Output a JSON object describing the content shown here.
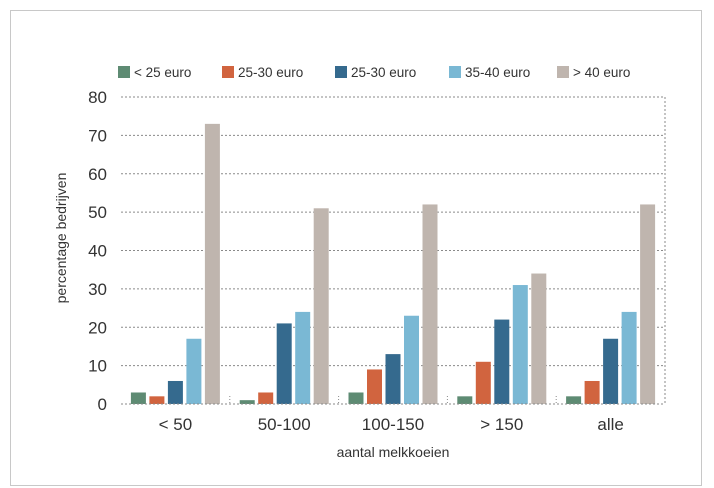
{
  "chart_data": {
    "type": "bar",
    "title": "",
    "xlabel": "aantal melkkoeien",
    "ylabel": "percentage bedrijven",
    "ylim": [
      0,
      80
    ],
    "yticks": [
      0,
      10,
      20,
      30,
      40,
      50,
      60,
      70,
      80
    ],
    "grid": true,
    "legend_position": "top",
    "categories": [
      "< 50",
      "50-100",
      "100-150",
      "> 150",
      "alle"
    ],
    "series": [
      {
        "name": "< 25 euro",
        "color": "#5e8b73",
        "values": [
          3,
          1,
          3,
          2,
          2
        ]
      },
      {
        "name": "25-30 euro",
        "color": "#d1643f",
        "values": [
          2,
          3,
          9,
          11,
          6
        ]
      },
      {
        "name": "25-30 euro",
        "color": "#356a8e",
        "values": [
          6,
          21,
          13,
          22,
          17
        ]
      },
      {
        "name": "35-40 euro",
        "color": "#7ab8d4",
        "values": [
          17,
          24,
          23,
          31,
          24
        ]
      },
      {
        "name": "> 40 euro",
        "color": "#bfb5ae",
        "values": [
          73,
          51,
          52,
          34,
          52
        ]
      }
    ]
  }
}
